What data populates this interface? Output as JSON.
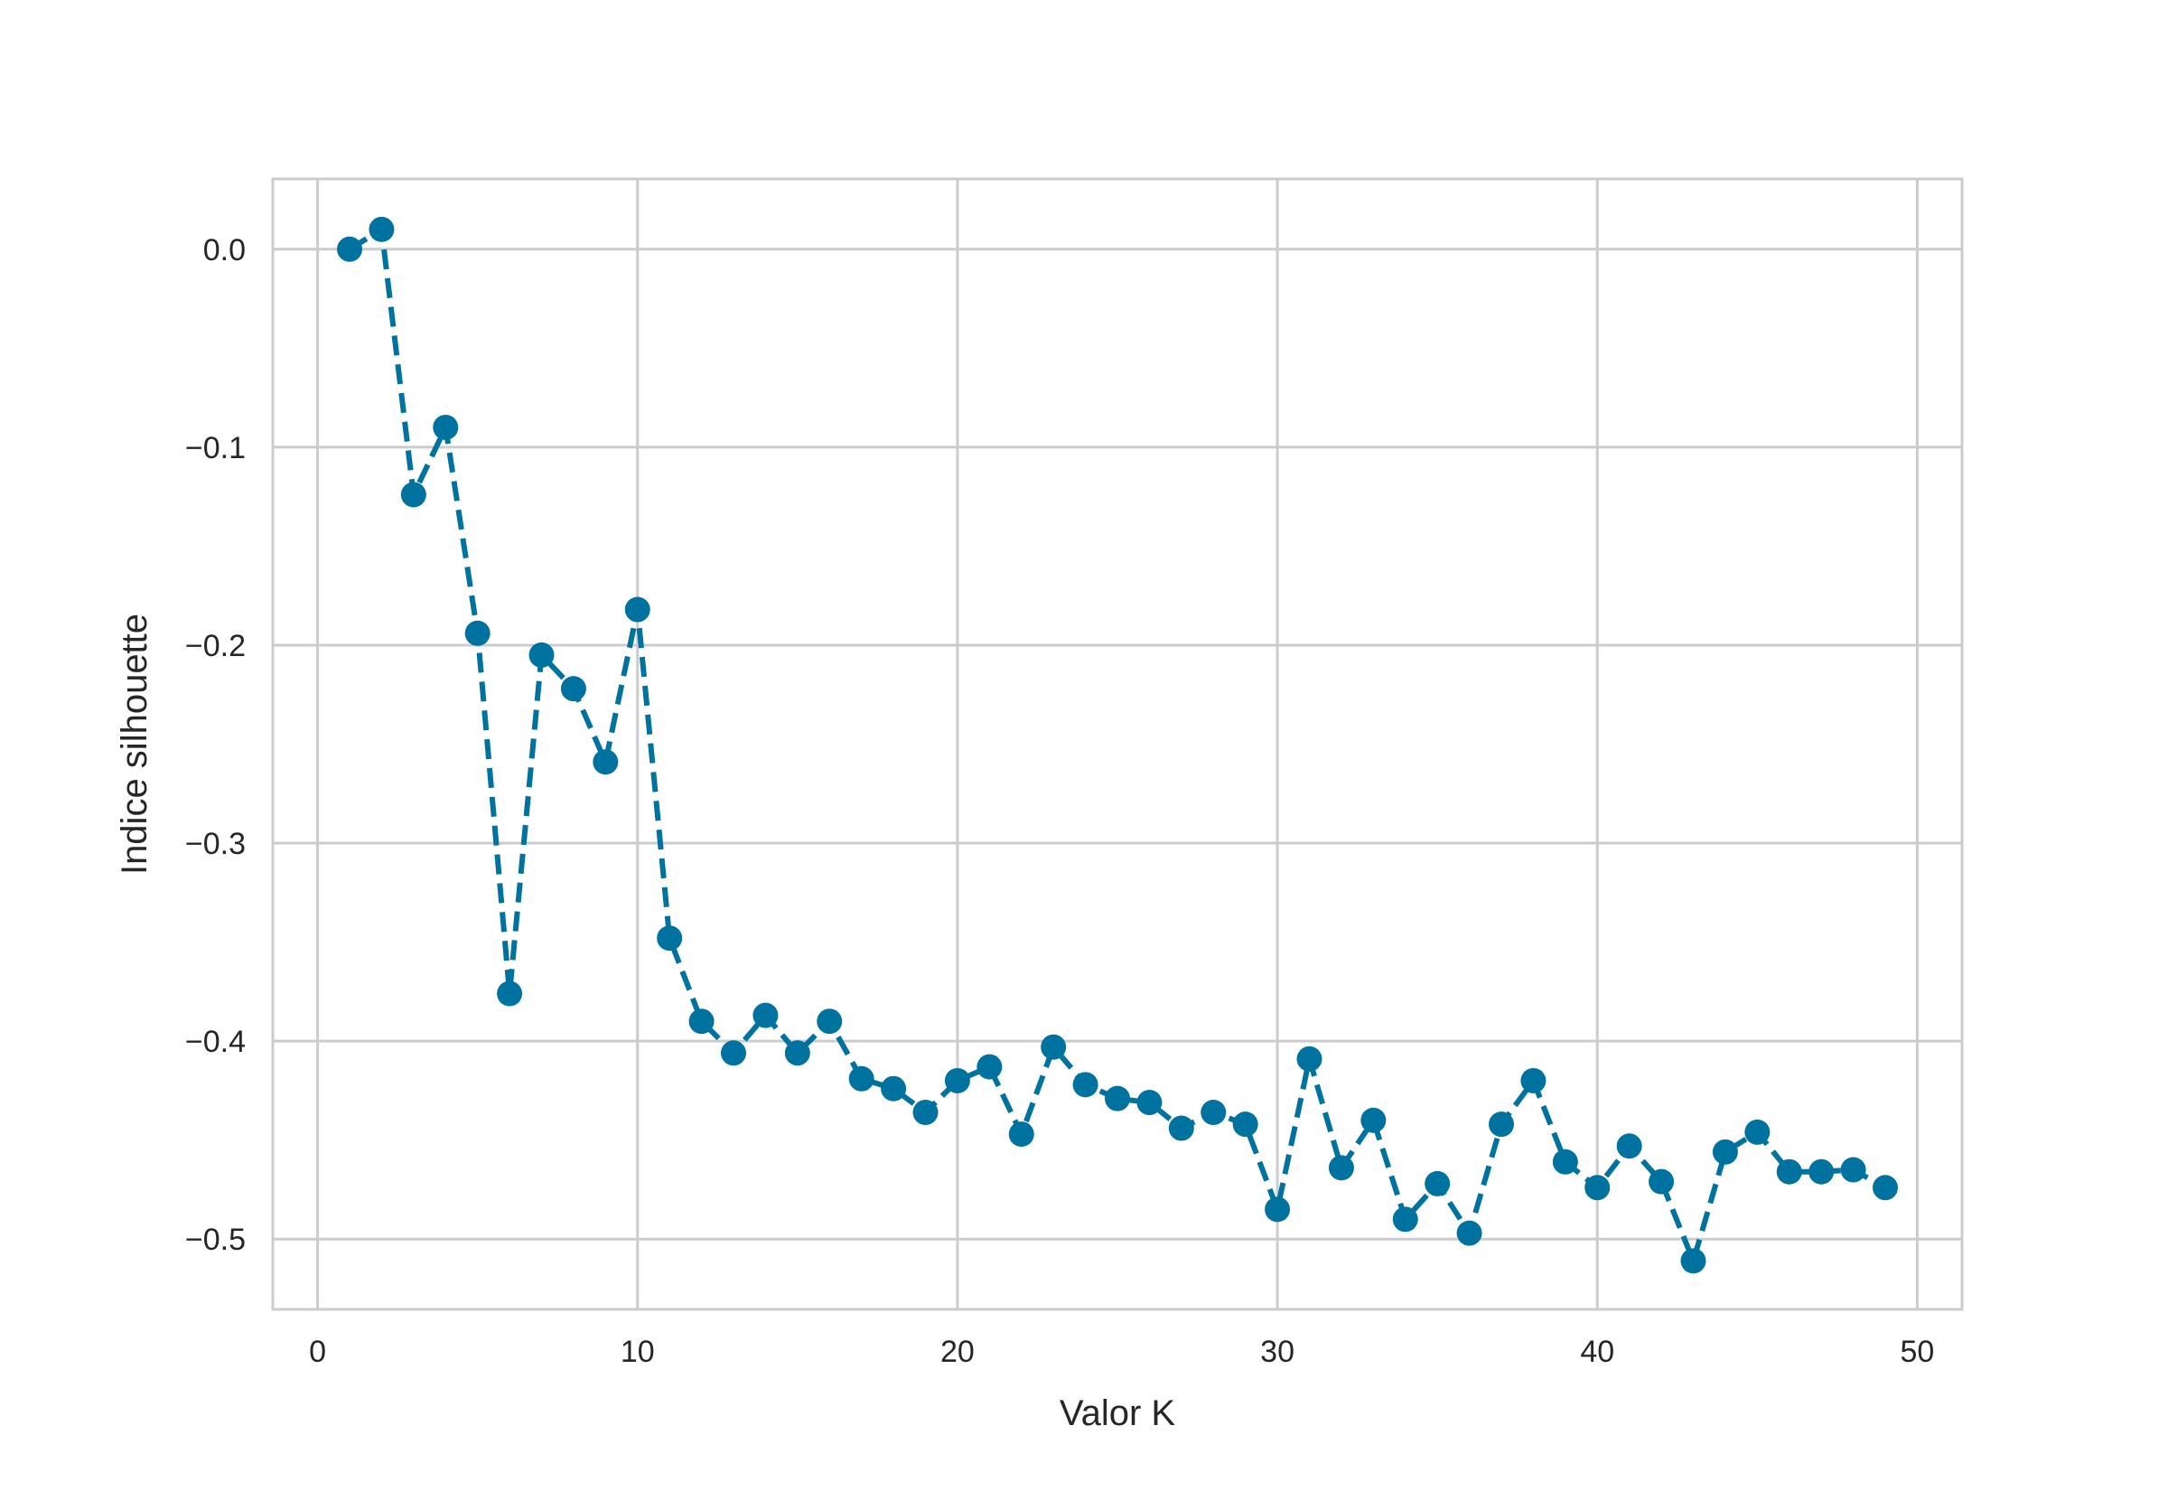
{
  "chart_data": {
    "type": "line",
    "xlabel": "Valor K",
    "ylabel": "Indice silhouette",
    "xlim": [
      -1.4,
      51.4
    ],
    "ylim": [
      -0.5355,
      0.0355
    ],
    "xticks": [
      0,
      10,
      20,
      30,
      40,
      50
    ],
    "xtick_labels": [
      "0",
      "10",
      "20",
      "30",
      "40",
      "50"
    ],
    "yticks": [
      0.0,
      -0.1,
      -0.2,
      -0.3,
      -0.4,
      -0.5
    ],
    "ytick_labels": [
      "0.0",
      "−0.1",
      "−0.2",
      "−0.3",
      "−0.4",
      "−0.5"
    ],
    "grid": true,
    "line_style": "dashed",
    "marker": "circle",
    "colors": {
      "series": "#0072a0",
      "grid": "#cccccc",
      "axes": "#cccccc",
      "text": "#262626"
    },
    "series": [
      {
        "x": [
          1,
          2,
          3,
          4,
          5,
          6,
          7,
          8,
          9,
          10,
          11,
          12,
          13,
          14,
          15,
          16,
          17,
          18,
          19,
          20,
          21,
          22,
          23,
          24,
          25,
          26,
          27,
          28,
          29,
          30,
          31,
          32,
          33,
          34,
          35,
          36,
          37,
          38,
          39,
          40,
          41,
          42,
          43,
          44,
          45,
          46,
          47,
          48,
          49
        ],
        "values": [
          0.0,
          0.01,
          -0.124,
          -0.09,
          -0.194,
          -0.376,
          -0.205,
          -0.222,
          -0.259,
          -0.182,
          -0.348,
          -0.39,
          -0.406,
          -0.387,
          -0.406,
          -0.39,
          -0.419,
          -0.424,
          -0.436,
          -0.42,
          -0.413,
          -0.447,
          -0.403,
          -0.422,
          -0.429,
          -0.431,
          -0.444,
          -0.436,
          -0.442,
          -0.485,
          -0.409,
          -0.464,
          -0.44,
          -0.49,
          -0.472,
          -0.497,
          -0.442,
          -0.42,
          -0.461,
          -0.474,
          -0.453,
          -0.471,
          -0.511,
          -0.456,
          -0.446,
          -0.466,
          -0.466,
          -0.465,
          -0.474
        ]
      }
    ]
  }
}
